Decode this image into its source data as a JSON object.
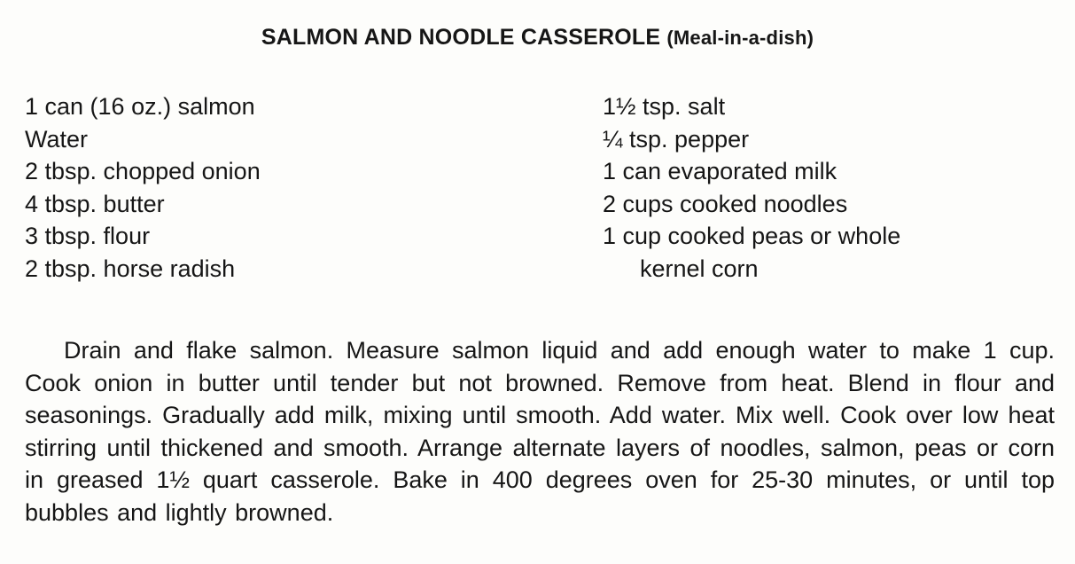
{
  "title": {
    "main": "SALMON AND NOODLE CASSEROLE",
    "sub": "(Meal-in-a-dish)"
  },
  "ingredients_left": [
    "1 can (16 oz.) salmon",
    "Water",
    "2 tbsp. chopped onion",
    "4 tbsp. butter",
    "3 tbsp. flour",
    "2 tbsp. horse radish"
  ],
  "ingredients_right": [
    "1½ tsp. salt",
    "¼ tsp. pepper",
    "1 can evaporated milk",
    "2 cups cooked noodles",
    "1 cup cooked peas or whole",
    "kernel corn"
  ],
  "method": "Drain and flake salmon. Measure salmon liquid and add enough water to make 1 cup. Cook onion in butter until tender but not browned. Remove from heat. Blend in flour and seasonings. Gradually add milk, mixing until smooth. Add water. Mix well. Cook over low heat stirring until thickened and smooth. Arrange alternate layers of noodles, salmon, peas or corn in greased 1½ quart casserole. Bake in 400 degrees oven for 25-30 minutes, or until top bubbles and lightly browned."
}
